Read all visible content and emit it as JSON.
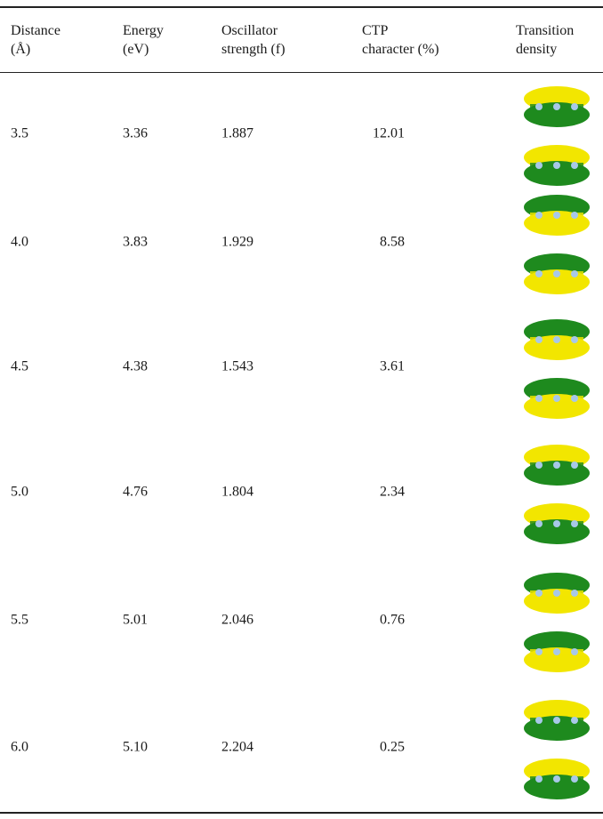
{
  "table": {
    "header": [
      [
        "Distance",
        "(Å)"
      ],
      [
        "Energy",
        "(eV)"
      ],
      [
        "Oscillator",
        "strength (f)"
      ],
      [
        "CTP",
        "character (%)"
      ],
      [
        "Transition",
        "density"
      ]
    ],
    "rows": [
      [
        "3.5",
        "3.36",
        "1.887",
        "12.01"
      ],
      [
        "4.0",
        "3.83",
        "1.929",
        "8.58"
      ],
      [
        "4.5",
        "4.38",
        "1.543",
        "3.61"
      ],
      [
        "5.0",
        "4.76",
        "1.804",
        "2.34"
      ],
      [
        "5.5",
        "5.01",
        "2.046",
        "0.76"
      ],
      [
        "6.0",
        "5.10",
        "2.204",
        "0.25"
      ]
    ]
  }
}
